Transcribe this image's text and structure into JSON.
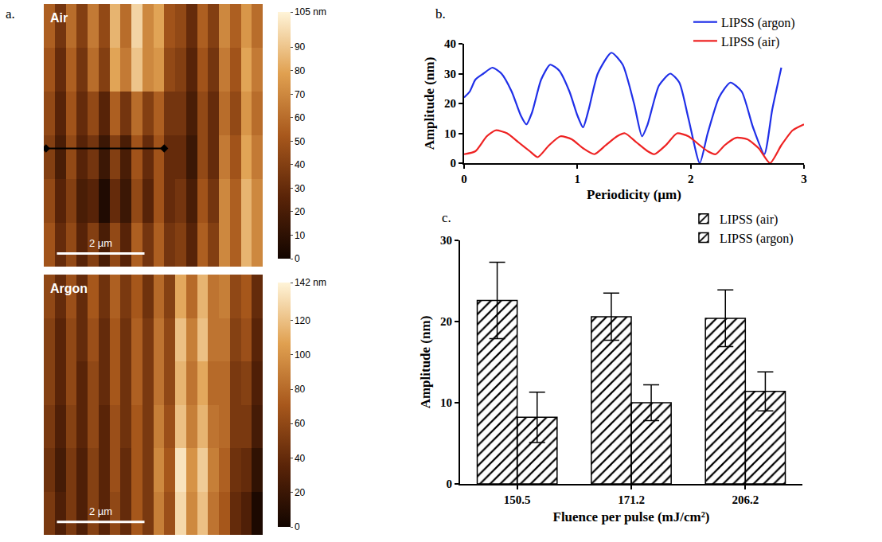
{
  "chart_data": [
    {
      "type": "heatmap",
      "label": "a.",
      "title": "Air",
      "x": [
        0.125,
        0.375,
        0.625,
        0.875,
        1.125,
        1.375,
        1.625,
        1.875,
        2.125,
        2.375,
        2.625,
        2.875,
        3.125,
        3.375,
        3.625,
        3.875,
        4.125,
        4.375,
        4.625,
        4.875
      ],
      "y": [
        5.5,
        4.5,
        3.5,
        2.5,
        1.5,
        0.5
      ],
      "values": [
        [
          55,
          35,
          60,
          40,
          65,
          45,
          85,
          60,
          95,
          70,
          80,
          50,
          45,
          30,
          55,
          40,
          70,
          55,
          75,
          60
        ],
        [
          50,
          30,
          55,
          35,
          60,
          40,
          80,
          65,
          90,
          70,
          75,
          45,
          40,
          25,
          50,
          35,
          65,
          50,
          80,
          65
        ],
        [
          45,
          25,
          50,
          30,
          45,
          25,
          55,
          35,
          60,
          40,
          55,
          35,
          35,
          20,
          45,
          30,
          60,
          45,
          75,
          60
        ],
        [
          40,
          20,
          45,
          25,
          35,
          15,
          40,
          20,
          50,
          30,
          50,
          30,
          30,
          15,
          45,
          30,
          65,
          50,
          80,
          65
        ],
        [
          45,
          25,
          40,
          20,
          25,
          5,
          30,
          15,
          45,
          25,
          50,
          30,
          35,
          20,
          50,
          35,
          70,
          55,
          85,
          70
        ],
        [
          50,
          30,
          45,
          25,
          40,
          20,
          45,
          25,
          55,
          35,
          55,
          35,
          40,
          25,
          55,
          40,
          70,
          55,
          85,
          70
        ]
      ],
      "xlim": [
        0,
        5
      ],
      "ylim": [
        0,
        6
      ],
      "tick_labels": false,
      "colorbar": {
        "range": [
          0,
          105
        ],
        "ticks": [
          0,
          10,
          20,
          30,
          40,
          50,
          60,
          70,
          80,
          90,
          {
            "value": 105,
            "label": "105 nm"
          }
        ]
      },
      "scale_bar": {
        "length": 2,
        "label": "2 µm"
      },
      "profile_line": {
        "x": [
          0.05,
          2.75
        ],
        "y": [
          2.7,
          2.7
        ]
      }
    },
    {
      "type": "heatmap",
      "title": "Argon",
      "x": [
        0.125,
        0.375,
        0.625,
        0.875,
        1.125,
        1.375,
        1.625,
        1.875,
        2.125,
        2.375,
        2.625,
        2.875,
        3.125,
        3.375,
        3.625,
        3.875,
        4.125,
        4.375,
        4.625,
        4.875
      ],
      "y": [
        5.5,
        4.5,
        3.5,
        2.5,
        1.5,
        0.5
      ],
      "values": [
        [
          60,
          40,
          65,
          40,
          70,
          45,
          75,
          50,
          70,
          45,
          80,
          55,
          110,
          80,
          115,
          85,
          90,
          60,
          70,
          40
        ],
        [
          55,
          35,
          60,
          40,
          65,
          40,
          70,
          45,
          75,
          50,
          85,
          60,
          120,
          90,
          120,
          85,
          85,
          55,
          65,
          35
        ],
        [
          55,
          35,
          60,
          35,
          60,
          40,
          70,
          45,
          75,
          50,
          85,
          60,
          115,
          85,
          110,
          80,
          80,
          50,
          55,
          30
        ],
        [
          50,
          30,
          55,
          35,
          60,
          35,
          65,
          45,
          70,
          50,
          90,
          65,
          120,
          90,
          115,
          85,
          80,
          50,
          50,
          25
        ],
        [
          45,
          25,
          50,
          30,
          55,
          35,
          65,
          40,
          70,
          50,
          95,
          70,
          135,
          100,
          125,
          90,
          75,
          45,
          40,
          15
        ],
        [
          50,
          30,
          50,
          30,
          55,
          35,
          60,
          40,
          70,
          50,
          90,
          65,
          130,
          95,
          120,
          85,
          70,
          40,
          30,
          5
        ]
      ],
      "xlim": [
        0,
        5
      ],
      "ylim": [
        0,
        6
      ],
      "tick_labels": false,
      "colorbar": {
        "range": [
          0,
          142
        ],
        "ticks": [
          0,
          20,
          40,
          60,
          80,
          100,
          120,
          {
            "value": 142,
            "label": "142 nm"
          }
        ]
      },
      "scale_bar": {
        "length": 2,
        "label": "2 µm"
      }
    },
    {
      "type": "line",
      "label": "b.",
      "x_label": "Periodicity (µm)",
      "y_label": "Amplitude (nm)",
      "xlim": [
        0,
        3
      ],
      "xticks": [
        0,
        1,
        2,
        3
      ],
      "ylim": [
        0,
        40
      ],
      "yticks": [
        0,
        10,
        20,
        30,
        40
      ],
      "legend": "top right",
      "series": [
        {
          "name": "LIPSS (argon)",
          "color": "#1f2fe8",
          "x": [
            0,
            0.05,
            0.1,
            0.17,
            0.25,
            0.33,
            0.42,
            0.5,
            0.55,
            0.6,
            0.68,
            0.76,
            0.84,
            0.93,
            1.0,
            1.05,
            1.1,
            1.18,
            1.3,
            1.4,
            1.5,
            1.57,
            1.62,
            1.72,
            1.82,
            1.9,
            1.98,
            2.08,
            2.15,
            2.25,
            2.35,
            2.45,
            2.55,
            2.65,
            2.72,
            2.8
          ],
          "values": [
            22,
            24,
            28,
            30,
            32,
            30,
            24,
            16,
            13,
            17,
            28,
            33,
            31,
            24,
            16,
            12,
            18,
            30,
            37,
            33,
            20,
            9,
            13,
            26,
            30,
            27,
            15,
            0,
            10,
            22,
            27,
            24,
            12,
            3,
            18,
            32
          ]
        },
        {
          "name": "LIPSS (air)",
          "color": "#ee2222",
          "x": [
            0,
            0.1,
            0.2,
            0.28,
            0.38,
            0.48,
            0.58,
            0.65,
            0.75,
            0.85,
            0.95,
            1.05,
            1.15,
            1.25,
            1.35,
            1.42,
            1.52,
            1.62,
            1.68,
            1.78,
            1.88,
            1.98,
            2.08,
            2.15,
            2.22,
            2.3,
            2.4,
            2.5,
            2.6,
            2.7,
            2.8,
            2.9,
            3.0
          ],
          "values": [
            3,
            4,
            9,
            11,
            10,
            7,
            4,
            2,
            6,
            9,
            8,
            5,
            3,
            6,
            9,
            10,
            7,
            4,
            3,
            6,
            10,
            9,
            6,
            4,
            3,
            6,
            8.5,
            8,
            5,
            0,
            6,
            11,
            13
          ]
        }
      ]
    },
    {
      "type": "bar",
      "label": "c.",
      "x_label": "Fluence per pulse (mJ/cm²)",
      "y_label": "Amplitude (nm)",
      "categories": [
        "150.5",
        "171.2",
        "206.2"
      ],
      "ylim": [
        0,
        30
      ],
      "yticks": [
        0,
        10,
        20,
        30
      ],
      "legend": "top right",
      "marker": "hatched",
      "series": [
        {
          "name": "LIPSS (argon)",
          "color": "#2b35d8",
          "values": [
            22.6,
            20.6,
            20.4
          ],
          "errors": [
            4.7,
            2.9,
            3.5
          ]
        },
        {
          "name": "LIPSS (air)",
          "color": "#e02424",
          "values": [
            8.2,
            10.0,
            11.4
          ],
          "errors": [
            3.1,
            2.2,
            2.4
          ]
        }
      ]
    }
  ]
}
